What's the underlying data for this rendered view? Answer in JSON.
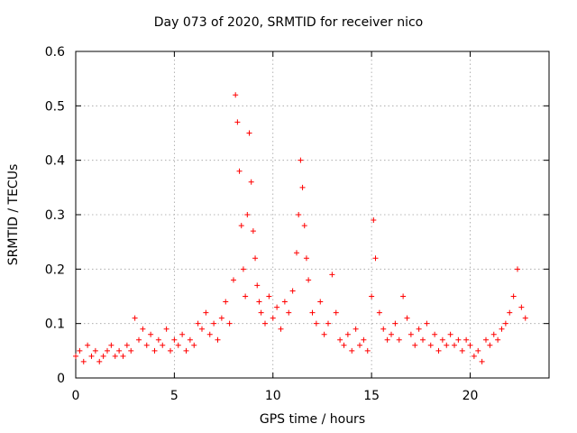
{
  "chart_data": {
    "type": "scatter",
    "title": "Day 073 of 2020, SRMTID for receiver nico",
    "xlabel": "GPS time / hours",
    "ylabel": "SRMTID / TECUs",
    "xlim": [
      0,
      24
    ],
    "ylim": [
      0,
      0.6
    ],
    "xticks": [
      0,
      5,
      10,
      15,
      20
    ],
    "xtick_labels": [
      "0",
      "5",
      "10",
      "15",
      "20"
    ],
    "yticks": [
      0,
      0.1,
      0.2,
      0.3,
      0.4,
      0.5,
      0.6
    ],
    "ytick_labels": [
      "0",
      "0.1",
      "0.2",
      "0.3",
      "0.4",
      "0.5",
      "0.6"
    ],
    "grid": true,
    "marker": "+",
    "color": "#ff0000",
    "series": [
      {
        "name": "SRMTID",
        "x": [
          0.0,
          0.2,
          0.4,
          0.6,
          0.8,
          1.0,
          1.2,
          1.4,
          1.6,
          1.8,
          2.0,
          2.2,
          2.4,
          2.6,
          2.8,
          3.0,
          3.2,
          3.4,
          3.6,
          3.8,
          4.0,
          4.2,
          4.4,
          4.6,
          4.8,
          5.0,
          5.2,
          5.4,
          5.6,
          5.8,
          6.0,
          6.2,
          6.4,
          6.6,
          6.8,
          7.0,
          7.2,
          7.4,
          7.6,
          7.8,
          8.0,
          8.1,
          8.2,
          8.3,
          8.4,
          8.5,
          8.6,
          8.7,
          8.8,
          8.9,
          9.0,
          9.1,
          9.2,
          9.3,
          9.4,
          9.6,
          9.8,
          10.0,
          10.2,
          10.4,
          10.6,
          10.8,
          11.0,
          11.2,
          11.3,
          11.4,
          11.5,
          11.6,
          11.7,
          11.8,
          12.0,
          12.2,
          12.4,
          12.6,
          12.8,
          13.0,
          13.2,
          13.4,
          13.6,
          13.8,
          14.0,
          14.2,
          14.4,
          14.6,
          14.8,
          15.0,
          15.1,
          15.2,
          15.4,
          15.6,
          15.8,
          16.0,
          16.2,
          16.4,
          16.6,
          16.8,
          17.0,
          17.2,
          17.4,
          17.6,
          17.8,
          18.0,
          18.2,
          18.4,
          18.6,
          18.8,
          19.0,
          19.2,
          19.4,
          19.6,
          19.8,
          20.0,
          20.2,
          20.4,
          20.6,
          20.8,
          21.0,
          21.2,
          21.4,
          21.6,
          21.8,
          22.0,
          22.2,
          22.4,
          22.6,
          22.8
        ],
        "y": [
          0.04,
          0.05,
          0.03,
          0.06,
          0.04,
          0.05,
          0.03,
          0.04,
          0.05,
          0.06,
          0.04,
          0.05,
          0.04,
          0.06,
          0.05,
          0.11,
          0.07,
          0.09,
          0.06,
          0.08,
          0.05,
          0.07,
          0.06,
          0.09,
          0.05,
          0.07,
          0.06,
          0.08,
          0.05,
          0.07,
          0.06,
          0.1,
          0.09,
          0.12,
          0.08,
          0.1,
          0.07,
          0.11,
          0.14,
          0.1,
          0.18,
          0.52,
          0.47,
          0.38,
          0.28,
          0.2,
          0.15,
          0.3,
          0.45,
          0.36,
          0.27,
          0.22,
          0.17,
          0.14,
          0.12,
          0.1,
          0.15,
          0.11,
          0.13,
          0.09,
          0.14,
          0.12,
          0.16,
          0.23,
          0.3,
          0.4,
          0.35,
          0.28,
          0.22,
          0.18,
          0.12,
          0.1,
          0.14,
          0.08,
          0.1,
          0.19,
          0.12,
          0.07,
          0.06,
          0.08,
          0.05,
          0.09,
          0.06,
          0.07,
          0.05,
          0.15,
          0.29,
          0.22,
          0.12,
          0.09,
          0.07,
          0.08,
          0.1,
          0.07,
          0.15,
          0.11,
          0.08,
          0.06,
          0.09,
          0.07,
          0.1,
          0.06,
          0.08,
          0.05,
          0.07,
          0.06,
          0.08,
          0.06,
          0.07,
          0.05,
          0.07,
          0.06,
          0.04,
          0.05,
          0.03,
          0.07,
          0.06,
          0.08,
          0.07,
          0.09,
          0.1,
          0.12,
          0.15,
          0.2,
          0.13,
          0.11
        ]
      }
    ]
  }
}
